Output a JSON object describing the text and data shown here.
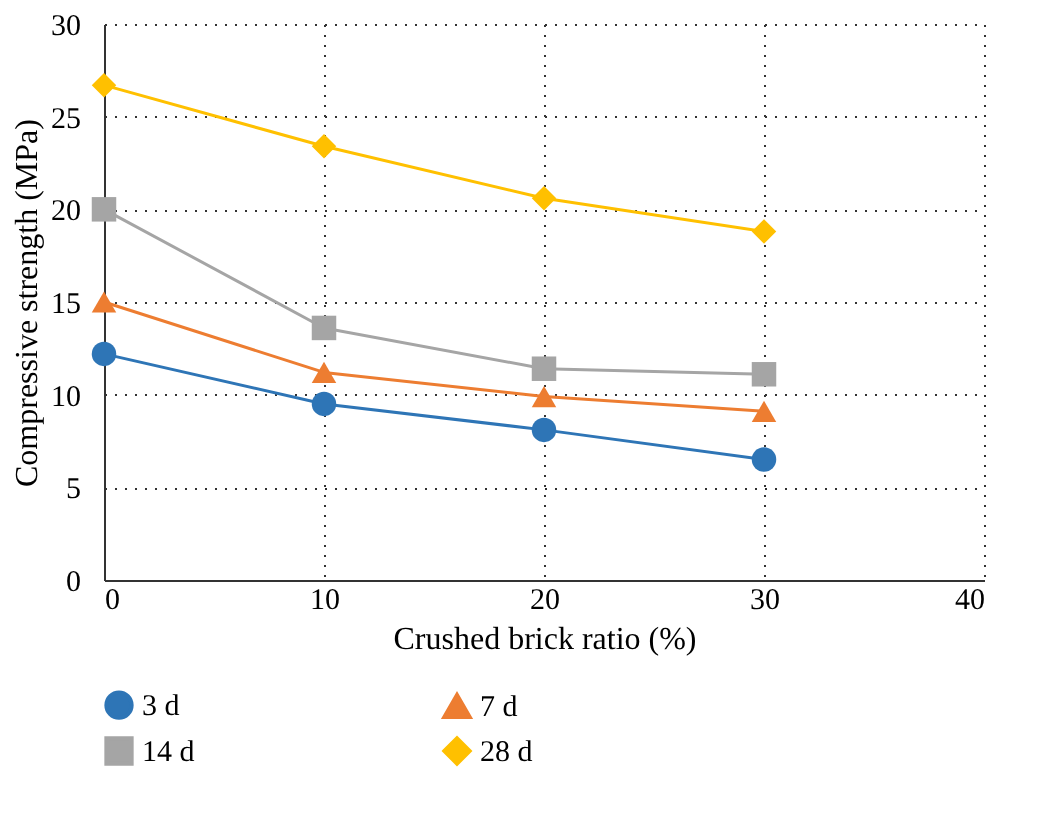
{
  "chart_data": {
    "type": "line",
    "xlabel": "Crushed brick ratio (%)",
    "ylabel": "Compressive strength (MPa)",
    "x": [
      0,
      10,
      20,
      30
    ],
    "xlim": [
      0,
      40
    ],
    "xticks": [
      0,
      10,
      20,
      30,
      40
    ],
    "ylim": [
      0,
      30
    ],
    "yticks": [
      0,
      5,
      10,
      15,
      20,
      25,
      30
    ],
    "grid": true,
    "legend": "bottom",
    "line_style": "solid",
    "series": [
      {
        "name": "3 d",
        "color": "#2e75b6",
        "marker": "circle",
        "values": [
          12.2,
          9.5,
          8.1,
          6.5
        ]
      },
      {
        "name": "7 d",
        "color": "#ed7d31",
        "marker": "triangle",
        "values": [
          15.0,
          11.2,
          9.9,
          9.1
        ]
      },
      {
        "name": "14 d",
        "color": "#a5a5a5",
        "marker": "square",
        "values": [
          20.0,
          13.6,
          11.4,
          11.1
        ]
      },
      {
        "name": "28 d",
        "color": "#ffc000",
        "marker": "diamond",
        "values": [
          26.7,
          23.4,
          20.6,
          18.8
        ]
      }
    ]
  }
}
